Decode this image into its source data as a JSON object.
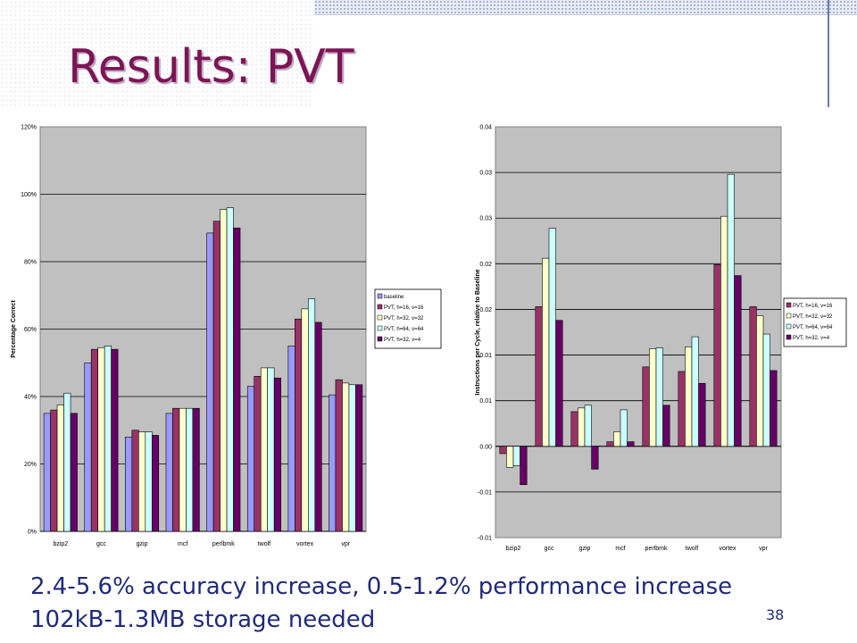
{
  "slide": {
    "title": "Results: PVT",
    "bullets": [
      "2.4-5.6% accuracy increase, 0.5-1.2% performance increase",
      "102kB-1.3MB storage needed"
    ],
    "slide_number": "38"
  },
  "colors": {
    "title": "#7d1455",
    "body_text": "#1f2a7a",
    "plot_background": "#c0c0c0"
  },
  "chart_data": [
    {
      "type": "bar",
      "title": "",
      "xlabel": "",
      "ylabel": "Percentage Correct",
      "categories": [
        "bzip2",
        "gcc",
        "gzip",
        "mcf",
        "perlbmk",
        "twolf",
        "vortex",
        "vpr"
      ],
      "y_ticks": [
        "0%",
        "20%",
        "40%",
        "60%",
        "80%",
        "100%",
        "120%"
      ],
      "ylim": [
        0,
        120
      ],
      "grid": true,
      "legend_position": "right",
      "series": [
        {
          "name": "baseline",
          "color": "#9999ff",
          "values": [
            35,
            50,
            28,
            35,
            88.5,
            43,
            55,
            40.5
          ]
        },
        {
          "name": "PVT, h=16, v=16",
          "color": "#993366",
          "values": [
            36,
            54,
            30,
            36.5,
            92,
            46,
            63,
            45
          ]
        },
        {
          "name": "PVT, h=32, v=32",
          "color": "#ffffcc",
          "values": [
            37.5,
            54.5,
            29.5,
            36.5,
            95.5,
            48.5,
            66,
            44
          ]
        },
        {
          "name": "PVT, h=64, v=64",
          "color": "#ccffff",
          "values": [
            41,
            55,
            29.5,
            36.5,
            96,
            48.5,
            69,
            43.5
          ]
        },
        {
          "name": "PVT, h=32, v=4",
          "color": "#660066",
          "values": [
            35,
            54,
            28.5,
            36.5,
            90,
            45.5,
            62,
            43.5
          ]
        }
      ]
    },
    {
      "type": "bar",
      "title": "",
      "xlabel": "",
      "ylabel": "Instructions per Cycle, relative to Baseline",
      "categories": [
        "bzip2",
        "gcc",
        "gzip",
        "mcf",
        "perlbmk",
        "twolf",
        "vortex",
        "vpr"
      ],
      "y_ticks": [
        "-0.01",
        "-0.01",
        "0.00",
        "0.01",
        "0.01",
        "0.02",
        "0.02",
        "0.03",
        "0.03",
        "0.04"
      ],
      "ylim": [
        -0.01,
        0.035
      ],
      "grid": true,
      "legend_position": "right",
      "series": [
        {
          "name": "PVT, h=16, v=16",
          "color": "#993366",
          "values": [
            -0.0008,
            0.0153,
            0.0038,
            0.0005,
            0.0087,
            0.0082,
            0.0199,
            0.0153
          ]
        },
        {
          "name": "PVT, h=32, v=32",
          "color": "#ffffcc",
          "values": [
            -0.0023,
            0.0206,
            0.0042,
            0.0016,
            0.0107,
            0.0109,
            0.0252,
            0.0143
          ]
        },
        {
          "name": "PVT, h=64, v=64",
          "color": "#ccffff",
          "values": [
            -0.0021,
            0.0239,
            0.0045,
            0.004,
            0.0108,
            0.012,
            0.0298,
            0.0123
          ]
        },
        {
          "name": "PVT, h=32, v=4",
          "color": "#660066",
          "values": [
            -0.0042,
            0.0138,
            -0.0025,
            0.0005,
            0.0045,
            0.0069,
            0.0187,
            0.0083
          ]
        }
      ]
    }
  ]
}
